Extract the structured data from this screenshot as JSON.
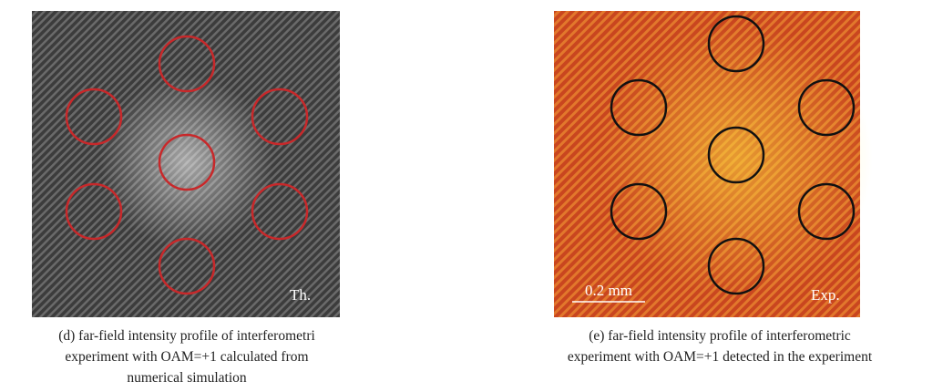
{
  "panels": [
    {
      "label": "Th.",
      "caption": [
        "(d) far-field intensity profile of interferometri",
        "experiment with OAM=+1 calculated from",
        "numerical simulation"
      ]
    },
    {
      "label": "Exp.",
      "scale_bar": "0.2 mm",
      "caption": [
        "(e) far-field intensity profile of interferometric",
        "experiment with OAM=+1 detected in the experiment"
      ]
    }
  ]
}
